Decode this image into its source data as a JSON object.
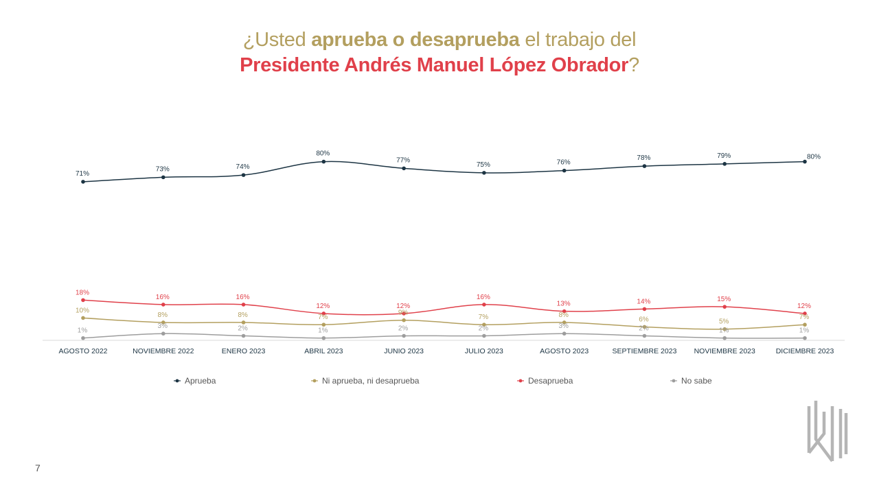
{
  "title": {
    "line1_pre": "¿Usted ",
    "line1_bold": "aprueba o desaprueba",
    "line1_post": " el trabajo del",
    "line2_bold": "Presidente Andrés Manuel López Obrador",
    "line2_post": "?"
  },
  "page_number": "7",
  "colors": {
    "aprueba": "#1c3443",
    "ni": "#b39f5f",
    "desaprueba": "#e0404a",
    "nosabe": "#9d9d9d",
    "axis_text": "#1c3443"
  },
  "chart_data": {
    "type": "line",
    "categories": [
      "AGOSTO 2022",
      "NOVIEMBRE 2022",
      "ENERO 2023",
      "ABRIL 2023",
      "JUNIO 2023",
      "JULIO 2023",
      "AGOSTO 2023",
      "SEPTIEMBRE 2023",
      "NOVIEMBRE 2023",
      "DICIEMBRE 2023"
    ],
    "series": [
      {
        "key": "aprueba",
        "name": "Aprueba",
        "color": "#1c3443",
        "values": [
          71,
          73,
          74,
          80,
          77,
          75,
          76,
          78,
          79,
          80
        ]
      },
      {
        "key": "ni",
        "name": "Ni aprueba, ni desaprueba",
        "color": "#b39f5f",
        "values": [
          10,
          8,
          8,
          7,
          9,
          7,
          8,
          6,
          5,
          7
        ]
      },
      {
        "key": "desaprueba",
        "name": "Desaprueba",
        "color": "#e0404a",
        "values": [
          18,
          16,
          16,
          12,
          12,
          16,
          13,
          14,
          15,
          12
        ]
      },
      {
        "key": "nosabe",
        "name": "No sabe",
        "color": "#9d9d9d",
        "values": [
          1,
          3,
          2,
          1,
          2,
          2,
          3,
          2,
          1,
          1
        ]
      }
    ],
    "value_suffix": "%",
    "ylim": [
      0,
      80
    ],
    "legend_position": "bottom",
    "grid": false
  }
}
